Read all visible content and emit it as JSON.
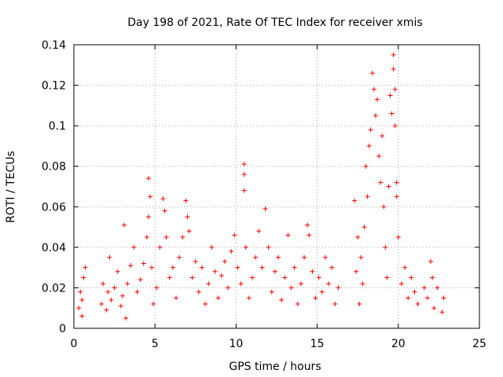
{
  "chart_data": {
    "type": "scatter",
    "title": "Day 198 of 2021, Rate Of TEC Index for receiver xmis",
    "xlabel": "GPS time / hours",
    "ylabel": "ROTI / TECUs",
    "xlim": [
      0,
      25
    ],
    "ylim": [
      0,
      0.14
    ],
    "x_ticks": [
      "0",
      "5",
      "10",
      "15",
      "20",
      "25"
    ],
    "y_ticks": [
      "0",
      "0.02",
      "0.04",
      "0.06",
      "0.08",
      "0.1",
      "0.12",
      "0.14"
    ],
    "grid": true,
    "marker": "plus",
    "color": "#ff0000",
    "series": [
      {
        "points": [
          [
            0.3,
            0.01
          ],
          [
            0.4,
            0.018
          ],
          [
            0.5,
            0.006
          ],
          [
            0.6,
            0.025
          ],
          [
            0.7,
            0.03
          ],
          [
            0.5,
            0.014
          ],
          [
            1.7,
            0.012
          ],
          [
            1.8,
            0.022
          ],
          [
            2.0,
            0.009
          ],
          [
            2.1,
            0.018
          ],
          [
            2.2,
            0.035
          ],
          [
            2.3,
            0.014
          ],
          [
            2.5,
            0.02
          ],
          [
            2.7,
            0.028
          ],
          [
            2.9,
            0.011
          ],
          [
            3.0,
            0.016
          ],
          [
            3.1,
            0.051
          ],
          [
            3.2,
            0.005
          ],
          [
            3.3,
            0.022
          ],
          [
            3.5,
            0.031
          ],
          [
            3.7,
            0.04
          ],
          [
            3.9,
            0.018
          ],
          [
            4.1,
            0.024
          ],
          [
            4.3,
            0.032
          ],
          [
            4.5,
            0.045
          ],
          [
            4.6,
            0.074
          ],
          [
            4.7,
            0.065
          ],
          [
            4.6,
            0.055
          ],
          [
            4.8,
            0.03
          ],
          [
            4.9,
            0.012
          ],
          [
            5.1,
            0.02
          ],
          [
            5.3,
            0.04
          ],
          [
            5.5,
            0.064
          ],
          [
            5.6,
            0.058
          ],
          [
            5.7,
            0.045
          ],
          [
            5.9,
            0.025
          ],
          [
            6.1,
            0.03
          ],
          [
            6.3,
            0.015
          ],
          [
            6.5,
            0.035
          ],
          [
            6.7,
            0.045
          ],
          [
            6.9,
            0.063
          ],
          [
            7.0,
            0.055
          ],
          [
            7.1,
            0.048
          ],
          [
            7.3,
            0.025
          ],
          [
            7.5,
            0.033
          ],
          [
            7.7,
            0.018
          ],
          [
            7.9,
            0.03
          ],
          [
            8.1,
            0.012
          ],
          [
            8.3,
            0.022
          ],
          [
            8.5,
            0.04
          ],
          [
            8.7,
            0.028
          ],
          [
            8.9,
            0.015
          ],
          [
            9.1,
            0.026
          ],
          [
            9.3,
            0.033
          ],
          [
            9.5,
            0.02
          ],
          [
            9.7,
            0.038
          ],
          [
            9.9,
            0.046
          ],
          [
            10.1,
            0.03
          ],
          [
            10.3,
            0.022
          ],
          [
            10.5,
            0.081
          ],
          [
            10.5,
            0.076
          ],
          [
            10.5,
            0.068
          ],
          [
            10.6,
            0.04
          ],
          [
            10.8,
            0.015
          ],
          [
            11.0,
            0.025
          ],
          [
            11.2,
            0.035
          ],
          [
            11.4,
            0.048
          ],
          [
            11.6,
            0.03
          ],
          [
            11.8,
            0.059
          ],
          [
            12.0,
            0.04
          ],
          [
            12.2,
            0.018
          ],
          [
            12.4,
            0.028
          ],
          [
            12.6,
            0.035
          ],
          [
            12.8,
            0.014
          ],
          [
            13.0,
            0.025
          ],
          [
            13.2,
            0.046
          ],
          [
            13.4,
            0.02
          ],
          [
            13.6,
            0.03
          ],
          [
            13.8,
            0.012
          ],
          [
            14.0,
            0.022
          ],
          [
            14.2,
            0.035
          ],
          [
            14.4,
            0.051
          ],
          [
            14.5,
            0.046
          ],
          [
            14.7,
            0.028
          ],
          [
            14.9,
            0.015
          ],
          [
            15.1,
            0.025
          ],
          [
            15.3,
            0.018
          ],
          [
            15.5,
            0.035
          ],
          [
            15.7,
            0.022
          ],
          [
            15.9,
            0.03
          ],
          [
            16.1,
            0.012
          ],
          [
            16.3,
            0.02
          ],
          [
            17.3,
            0.063
          ],
          [
            17.4,
            0.028
          ],
          [
            17.5,
            0.045
          ],
          [
            17.6,
            0.012
          ],
          [
            17.7,
            0.035
          ],
          [
            17.8,
            0.022
          ],
          [
            17.9,
            0.05
          ],
          [
            18.0,
            0.08
          ],
          [
            18.1,
            0.065
          ],
          [
            18.2,
            0.09
          ],
          [
            18.3,
            0.098
          ],
          [
            18.4,
            0.126
          ],
          [
            18.5,
            0.118
          ],
          [
            18.6,
            0.105
          ],
          [
            18.7,
            0.113
          ],
          [
            18.8,
            0.085
          ],
          [
            18.9,
            0.072
          ],
          [
            19.0,
            0.095
          ],
          [
            19.1,
            0.06
          ],
          [
            19.2,
            0.04
          ],
          [
            19.3,
            0.025
          ],
          [
            19.4,
            0.07
          ],
          [
            19.5,
            0.115
          ],
          [
            19.6,
            0.106
          ],
          [
            19.7,
            0.135
          ],
          [
            19.7,
            0.128
          ],
          [
            19.8,
            0.118
          ],
          [
            19.8,
            0.1
          ],
          [
            19.9,
            0.065
          ],
          [
            19.9,
            0.072
          ],
          [
            20.0,
            0.045
          ],
          [
            20.2,
            0.022
          ],
          [
            20.4,
            0.03
          ],
          [
            20.6,
            0.015
          ],
          [
            20.8,
            0.025
          ],
          [
            21.0,
            0.018
          ],
          [
            21.2,
            0.012
          ],
          [
            21.6,
            0.02
          ],
          [
            21.8,
            0.015
          ],
          [
            22.0,
            0.033
          ],
          [
            22.1,
            0.025
          ],
          [
            22.2,
            0.01
          ],
          [
            22.4,
            0.02
          ],
          [
            22.7,
            0.008
          ],
          [
            22.8,
            0.015
          ]
        ]
      }
    ]
  }
}
